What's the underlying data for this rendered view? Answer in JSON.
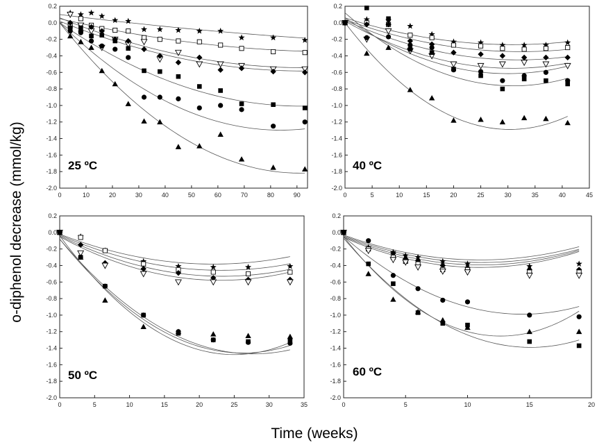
{
  "figure": {
    "ylabel": "o-diphenol decrease (mmol/kg)",
    "xlabel": "Time (weeks)"
  },
  "chart_data": [
    {
      "type": "scatter",
      "title": "25 ºC",
      "ylim": [
        -2.0,
        0.2
      ],
      "xlim": [
        0,
        94
      ],
      "xticks": [
        0,
        10,
        20,
        30,
        40,
        50,
        60,
        70,
        80,
        90
      ],
      "yticks": [
        0.2,
        0.0,
        -0.2,
        -0.4,
        -0.6,
        -0.8,
        -1.0,
        -1.2,
        -1.4,
        -1.6,
        -1.8,
        -2.0
      ],
      "series": [
        {
          "marker": "star",
          "x": [
            4,
            8,
            12,
            16,
            21,
            26,
            32,
            38,
            45,
            53,
            61,
            69,
            81,
            93
          ],
          "y": [
            0.12,
            0.1,
            0.12,
            0.08,
            0.03,
            0.02,
            -0.08,
            -0.08,
            -0.09,
            -0.1,
            -0.1,
            -0.18,
            -0.18,
            -0.21
          ],
          "fit": [
            0.1,
            -0.004,
            1e-05
          ]
        },
        {
          "marker": "square-open",
          "x": [
            4,
            8,
            12,
            16,
            21,
            26,
            32,
            38,
            45,
            53,
            61,
            69,
            81,
            93
          ],
          "y": [
            -0.04,
            0.05,
            -0.03,
            -0.07,
            -0.09,
            -0.1,
            -0.18,
            -0.2,
            -0.22,
            -0.23,
            -0.27,
            -0.31,
            -0.35,
            -0.36
          ],
          "fit": [
            0.05,
            -0.0075,
            3.5e-05
          ]
        },
        {
          "marker": "triangle-down-open",
          "x": [
            4,
            8,
            12,
            16,
            21,
            26,
            32,
            38,
            45,
            53,
            61,
            69,
            81,
            93
          ],
          "y": [
            0.1,
            -0.03,
            -0.1,
            -0.3,
            -0.2,
            -0.26,
            -0.23,
            -0.44,
            -0.36,
            -0.5,
            -0.5,
            -0.52,
            -0.56,
            -0.56
          ],
          "fit": [
            0.06,
            -0.013,
            7e-05
          ]
        },
        {
          "marker": "diamond",
          "x": [
            4,
            8,
            12,
            16,
            21,
            26,
            32,
            38,
            45,
            53,
            61,
            69,
            81,
            93
          ],
          "y": [
            0.0,
            -0.1,
            -0.05,
            -0.1,
            -0.2,
            -0.22,
            -0.32,
            -0.4,
            -0.48,
            -0.42,
            -0.57,
            -0.55,
            -0.59,
            -0.6
          ],
          "fit": [
            0.02,
            -0.013,
            7e-05
          ]
        },
        {
          "marker": "square",
          "x": [
            4,
            8,
            12,
            16,
            21,
            26,
            32,
            38,
            45,
            53,
            61,
            69,
            81,
            93
          ],
          "y": [
            -0.06,
            -0.06,
            -0.16,
            -0.15,
            -0.22,
            -0.31,
            -0.58,
            -0.59,
            -0.65,
            -0.77,
            -0.82,
            -0.98,
            -0.99,
            -1.03
          ],
          "fit": [
            0.0,
            -0.022,
            0.00012
          ]
        },
        {
          "marker": "circle",
          "x": [
            4,
            8,
            12,
            16,
            21,
            26,
            32,
            38,
            45,
            53,
            61,
            69,
            81,
            93
          ],
          "y": [
            -0.1,
            -0.12,
            -0.22,
            -0.28,
            -0.32,
            -0.42,
            -0.9,
            -0.9,
            -0.92,
            -1.03,
            -1.0,
            -1.05,
            -1.25,
            -1.2
          ],
          "fit": [
            0.0,
            -0.031,
            0.000185
          ]
        },
        {
          "marker": "triangle",
          "x": [
            4,
            8,
            12,
            16,
            21,
            26,
            32,
            38,
            45,
            53,
            61,
            69,
            81,
            93
          ],
          "y": [
            -0.16,
            -0.23,
            -0.3,
            -0.58,
            -0.74,
            -0.98,
            -1.19,
            -1.2,
            -1.5,
            -1.49,
            -1.35,
            -1.65,
            -1.75,
            -1.77
          ],
          "fit": [
            0.0,
            -0.04,
            0.00022
          ]
        }
      ]
    },
    {
      "type": "scatter",
      "title": "40 ºC",
      "ylim": [
        -2.0,
        0.2
      ],
      "xlim": [
        0,
        45
      ],
      "xticks": [
        0,
        5,
        10,
        15,
        20,
        25,
        30,
        35,
        40,
        45
      ],
      "yticks": [
        0.2,
        0.0,
        -0.2,
        -0.4,
        -0.6,
        -0.8,
        -1.0,
        -1.2,
        -1.4,
        -1.6,
        -1.8,
        -2.0
      ],
      "series": [
        {
          "marker": "star",
          "x": [
            0,
            4,
            8,
            12,
            16,
            20,
            25,
            29,
            33,
            37,
            41
          ],
          "y": [
            0.0,
            0.04,
            0.03,
            -0.04,
            -0.14,
            -0.23,
            -0.24,
            -0.27,
            -0.27,
            -0.27,
            -0.24
          ],
          "fit": [
            0.06,
            -0.021,
            0.00034
          ]
        },
        {
          "marker": "square-open",
          "x": [
            0,
            4,
            8,
            12,
            16,
            20,
            25,
            29,
            33,
            37,
            41
          ],
          "y": [
            0.0,
            0.0,
            -0.02,
            -0.15,
            -0.18,
            -0.27,
            -0.28,
            -0.31,
            -0.32,
            -0.31,
            -0.3
          ],
          "fit": [
            0.04,
            -0.024,
            0.00037
          ]
        },
        {
          "marker": "diamond",
          "x": [
            0,
            4,
            8,
            12,
            16,
            20,
            25,
            29,
            33,
            37,
            41
          ],
          "y": [
            0.0,
            -0.02,
            -0.02,
            -0.22,
            -0.26,
            -0.36,
            -0.38,
            -0.4,
            -0.42,
            -0.42,
            -0.42
          ],
          "fit": [
            0.03,
            -0.03,
            0.00047
          ]
        },
        {
          "marker": "triangle-down-open",
          "x": [
            0,
            4,
            8,
            12,
            16,
            20,
            25,
            29,
            33,
            37,
            41
          ],
          "y": [
            0.0,
            -0.2,
            -0.1,
            -0.34,
            -0.4,
            -0.5,
            -0.52,
            -0.5,
            -0.48,
            -0.5,
            -0.52
          ],
          "fit": [
            0.02,
            -0.037,
            0.0006
          ]
        },
        {
          "marker": "circle",
          "x": [
            0,
            4,
            8,
            12,
            16,
            20,
            25,
            29,
            33,
            37,
            41
          ],
          "y": [
            0.0,
            -0.18,
            -0.17,
            -0.27,
            -0.3,
            -0.57,
            -0.59,
            -0.7,
            -0.64,
            -0.6,
            -0.7
          ],
          "fit": [
            0.06,
            -0.045,
            0.00075
          ]
        },
        {
          "marker": "square",
          "x": [
            0,
            4,
            8,
            12,
            16,
            20,
            25,
            29,
            33,
            37,
            41
          ],
          "y": [
            0.0,
            0.18,
            0.05,
            -0.32,
            -0.36,
            -0.56,
            -0.64,
            -0.8,
            -0.68,
            -0.7,
            -0.74
          ],
          "fit": [
            0.12,
            -0.057,
            0.00092
          ]
        },
        {
          "marker": "triangle",
          "x": [
            0,
            4,
            8,
            12,
            16,
            20,
            25,
            29,
            33,
            37,
            41
          ],
          "y": [
            0.0,
            -0.37,
            -0.3,
            -0.81,
            -0.91,
            -1.18,
            -1.17,
            -1.2,
            -1.15,
            -1.16,
            -1.21
          ],
          "fit": [
            0.0,
            -0.085,
            0.0014
          ]
        }
      ]
    },
    {
      "type": "scatter",
      "title": "50 ºC",
      "ylim": [
        -2.0,
        0.2
      ],
      "xlim": [
        0,
        35
      ],
      "xticks": [
        0,
        5,
        10,
        15,
        20,
        25,
        30,
        35
      ],
      "yticks": [
        0.2,
        0.0,
        -0.2,
        -0.4,
        -0.6,
        -0.8,
        -1.0,
        -1.2,
        -1.4,
        -1.6,
        -1.8,
        -2.0
      ],
      "series": [
        {
          "marker": "star",
          "x": [
            0,
            3,
            6.5,
            12,
            17,
            22,
            27,
            33
          ],
          "y": [
            0.0,
            -0.05,
            -0.22,
            -0.35,
            -0.41,
            -0.42,
            -0.42,
            -0.41
          ],
          "fit": [
            -0.02,
            -0.033,
            0.00075
          ]
        },
        {
          "marker": "square-open",
          "x": [
            0,
            3,
            6.5,
            12,
            17,
            22,
            27,
            33
          ],
          "y": [
            0.0,
            -0.06,
            -0.22,
            -0.38,
            -0.45,
            -0.48,
            -0.5,
            -0.48
          ],
          "fit": [
            -0.03,
            -0.037,
            0.0008
          ]
        },
        {
          "marker": "diamond",
          "x": [
            0,
            3,
            6.5,
            12,
            17,
            22,
            27,
            33
          ],
          "y": [
            0.0,
            -0.15,
            -0.37,
            -0.44,
            -0.49,
            -0.55,
            -0.57,
            -0.57
          ],
          "fit": [
            -0.04,
            -0.042,
            0.0009
          ]
        },
        {
          "marker": "triangle-down-open",
          "x": [
            0,
            3,
            6.5,
            12,
            17,
            22,
            27,
            33
          ],
          "y": [
            0.0,
            -0.25,
            -0.4,
            -0.5,
            -0.6,
            -0.6,
            -0.6,
            -0.6
          ],
          "fit": [
            -0.05,
            -0.046,
            0.001
          ]
        },
        {
          "marker": "circle",
          "x": [
            0,
            3,
            6.5,
            12,
            17,
            22,
            27,
            33
          ],
          "y": [
            0.0,
            -0.3,
            -0.65,
            -1.0,
            -1.2,
            -1.3,
            -1.33,
            -1.34
          ],
          "fit": [
            -0.08,
            -0.1,
            0.0018
          ]
        },
        {
          "marker": "square",
          "x": [
            0,
            3,
            6.5,
            12,
            17,
            22,
            27,
            33
          ],
          "y": [
            0.0,
            -0.3,
            -0.65,
            -1.0,
            -1.22,
            -1.3,
            -1.32,
            -1.3
          ],
          "fit": [
            -0.08,
            -0.105,
            0.002
          ]
        },
        {
          "marker": "triangle",
          "x": [
            0,
            3,
            6.5,
            12,
            17,
            22,
            27,
            33
          ],
          "y": [
            0.0,
            -0.3,
            -0.82,
            -1.14,
            -1.2,
            -1.23,
            -1.25,
            -1.26
          ],
          "fit": [
            -0.04,
            -0.115,
            0.0023
          ]
        }
      ]
    },
    {
      "type": "scatter",
      "title": "60 ºC",
      "ylim": [
        -2.0,
        0.2
      ],
      "xlim": [
        0,
        20
      ],
      "xticks": [
        0,
        5,
        10,
        15,
        20
      ],
      "yticks": [
        0.2,
        0.0,
        -0.2,
        -0.4,
        -0.6,
        -0.8,
        -1.0,
        -1.2,
        -1.4,
        -1.6,
        -1.8,
        -2.0
      ],
      "series": [
        {
          "marker": "star",
          "x": [
            0,
            2,
            4,
            5,
            6,
            8,
            10,
            15,
            19
          ],
          "y": [
            0.0,
            -0.18,
            -0.24,
            -0.28,
            -0.3,
            -0.35,
            -0.38,
            -0.41,
            -0.38
          ],
          "fit": [
            -0.03,
            -0.055,
            0.0025
          ]
        },
        {
          "marker": "diamond",
          "x": [
            0,
            2,
            4,
            5,
            6,
            8,
            10,
            15,
            19
          ],
          "y": [
            0.0,
            -0.2,
            -0.25,
            -0.32,
            -0.34,
            -0.4,
            -0.43,
            -0.45,
            -0.45
          ],
          "fit": [
            -0.04,
            -0.058,
            0.0026
          ]
        },
        {
          "marker": "square-open",
          "x": [
            0,
            2,
            4,
            5,
            6,
            8,
            10,
            15,
            19
          ],
          "y": [
            0.0,
            -0.2,
            -0.3,
            -0.35,
            -0.38,
            -0.45,
            -0.45,
            -0.48,
            -0.48
          ],
          "fit": [
            -0.05,
            -0.062,
            0.0028
          ]
        },
        {
          "marker": "triangle-down-open",
          "x": [
            0,
            2,
            4,
            5,
            6,
            8,
            10,
            15,
            19
          ],
          "y": [
            0.0,
            -0.22,
            -0.33,
            -0.36,
            -0.42,
            -0.47,
            -0.48,
            -0.52,
            -0.52
          ],
          "fit": [
            -0.06,
            -0.066,
            0.003
          ]
        },
        {
          "marker": "circle",
          "x": [
            0,
            2,
            4,
            6,
            8,
            10,
            15,
            19
          ],
          "y": [
            0.0,
            -0.1,
            -0.52,
            -0.68,
            -0.82,
            -0.84,
            -1.0,
            -1.02
          ],
          "fit": [
            -0.05,
            -0.13,
            0.0045
          ]
        },
        {
          "marker": "triangle",
          "x": [
            0,
            2,
            4,
            6,
            8,
            10,
            15,
            19
          ],
          "y": [
            0.0,
            -0.5,
            -0.81,
            -0.96,
            -1.06,
            -1.15,
            -1.2,
            -1.2
          ],
          "fit": [
            -0.05,
            -0.19,
            0.0075
          ]
        },
        {
          "marker": "square",
          "x": [
            0,
            2,
            4,
            6,
            8,
            10,
            15,
            19
          ],
          "y": [
            0.0,
            -0.38,
            -0.62,
            -0.97,
            -1.1,
            -1.12,
            -1.32,
            -1.37
          ],
          "fit": [
            -0.07,
            -0.175,
            0.0058
          ]
        }
      ]
    }
  ]
}
